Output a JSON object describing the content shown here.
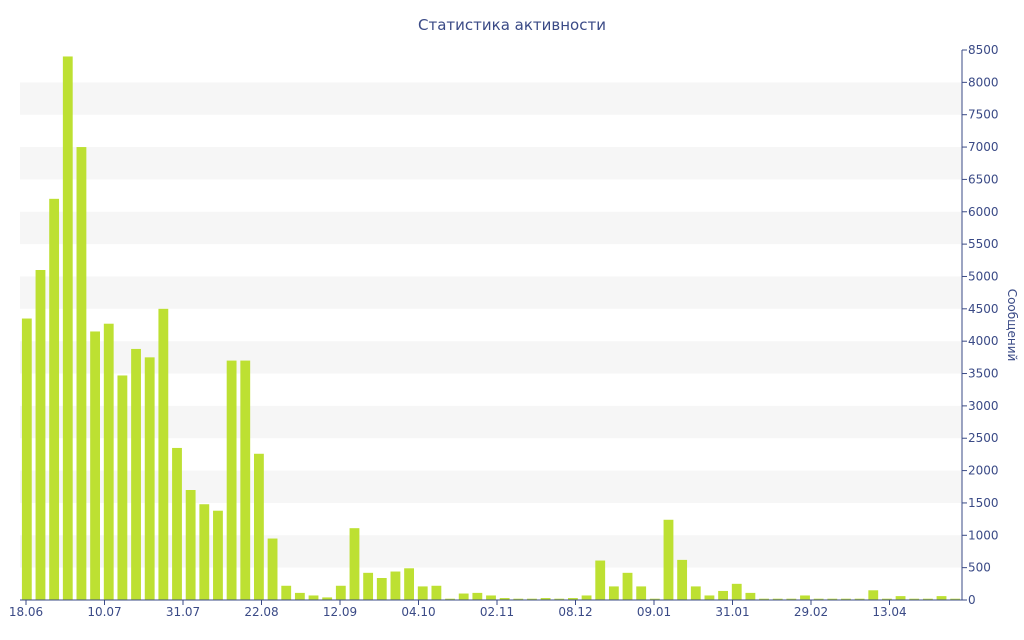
{
  "chart_data": {
    "type": "bar",
    "title": "Статистика активности",
    "ylabel": "Сообщений",
    "xlabel": "",
    "ylim": [
      0,
      8500
    ],
    "yticks": [
      0,
      500,
      1000,
      1500,
      2000,
      2500,
      3000,
      3500,
      4000,
      4500,
      5000,
      5500,
      6000,
      6500,
      7000,
      7500,
      8000,
      8500
    ],
    "y_axis_side": "right",
    "grid": "alternating horizontal bands",
    "x_tick_labels": [
      "18.06",
      "10.07",
      "31.07",
      "22.08",
      "12.09",
      "04.10",
      "02.11",
      "08.12",
      "09.01",
      "31.01",
      "29.02",
      "13.04"
    ],
    "bar_color": "#bde032",
    "values": [
      4350,
      5100,
      6200,
      8400,
      7000,
      4150,
      4270,
      3470,
      3880,
      3750,
      4500,
      2350,
      1700,
      1480,
      1380,
      3700,
      3700,
      2260,
      950,
      220,
      110,
      70,
      40,
      220,
      1110,
      420,
      340,
      440,
      490,
      210,
      220,
      20,
      100,
      110,
      70,
      30,
      20,
      20,
      30,
      20,
      30,
      70,
      610,
      210,
      420,
      210,
      20,
      1240,
      620,
      210,
      70,
      140,
      250,
      110,
      20,
      20,
      20,
      70,
      20,
      20,
      20,
      20,
      150,
      20,
      60,
      20,
      20,
      60,
      20
    ]
  }
}
